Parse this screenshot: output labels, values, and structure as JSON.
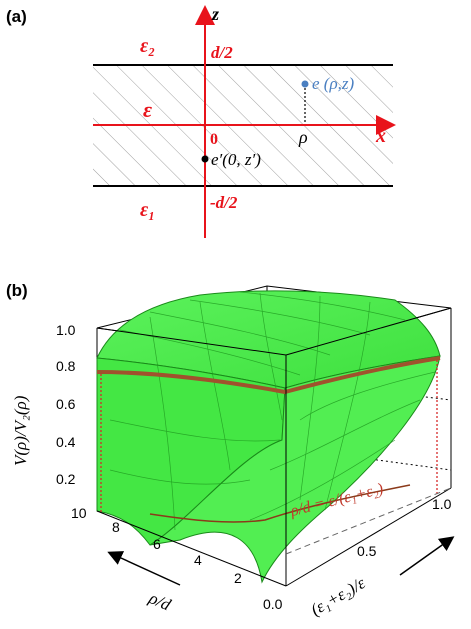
{
  "panel_a": {
    "label": "(a)",
    "z_axis": "z",
    "x_axis": "x",
    "upper_medium": "ε₂",
    "middle_medium": "ε",
    "lower_medium": "ε₁",
    "top_boundary": "d/2",
    "bottom_boundary": "-d/2",
    "origin": "0",
    "rho": "ρ",
    "field_point": "e (ρ,z)",
    "source_point": "e′(0, z′)",
    "colors": {
      "axes": "#e8131b",
      "field_point": "#4a7fc1",
      "boundary": "#000000",
      "hatch": "#9a9a9a"
    }
  },
  "panel_b": {
    "label": "(b)",
    "z_axis_title": "V(ρ)/V₂(ρ)",
    "z_ticks": [
      "1.0",
      "0.8",
      "0.6",
      "0.4",
      "0.2"
    ],
    "rho_axis_title": "ρ/d",
    "rho_ticks": [
      "10",
      "8",
      "6",
      "4",
      "2"
    ],
    "eps_axis_title": "(ε₁+ε₂)/ε",
    "eps_ticks": [
      "0.0",
      "0.5",
      "1.0"
    ],
    "annotation": "ρ/d = ε/(ε₁+ε₂)",
    "colors": {
      "surface": "#4ef04e",
      "surface_edge": "#1a8a1a",
      "curve": "#a0522d",
      "annotation": "#c0392b"
    }
  }
}
